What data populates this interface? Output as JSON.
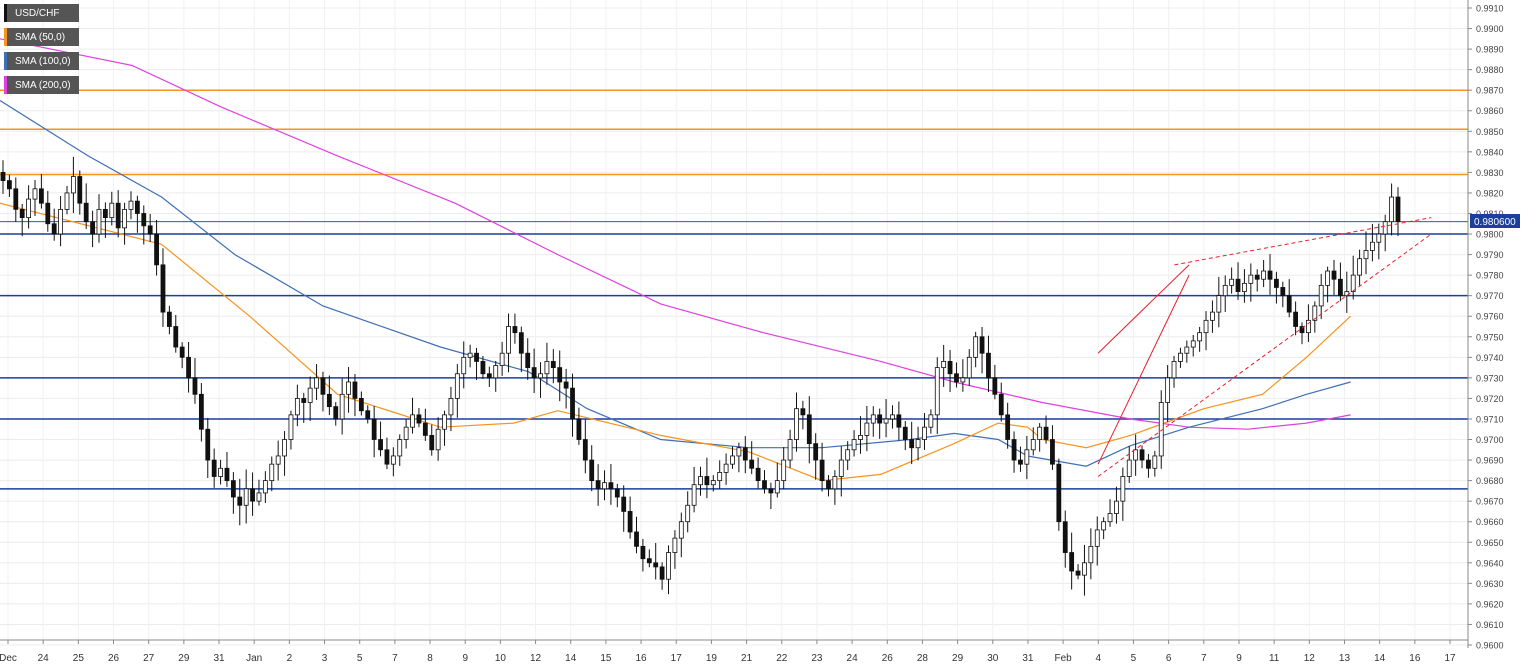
{
  "legend": [
    {
      "label": "USD/CHF",
      "color": "#111111"
    },
    {
      "label": "SMA (50,0)",
      "color": "#f7931e"
    },
    {
      "label": "SMA (100,0)",
      "color": "#3f6fb5"
    },
    {
      "label": "SMA (200,0)",
      "color": "#e040e0"
    }
  ],
  "price_tag": "0.980600",
  "chart_data": {
    "type": "candlestick",
    "symbol": "USD/CHF",
    "ylim": [
      0.96,
      0.9915
    ],
    "y_ticks": [
      "0.9600",
      "0.9610",
      "0.9620",
      "0.9630",
      "0.9640",
      "0.9650",
      "0.9660",
      "0.9670",
      "0.9680",
      "0.9690",
      "0.9700",
      "0.9710",
      "0.9720",
      "0.9730",
      "0.9740",
      "0.9750",
      "0.9760",
      "0.9770",
      "0.9780",
      "0.9790",
      "0.9800",
      "0.9810",
      "0.9820",
      "0.9830",
      "0.9840",
      "0.9850",
      "0.9860",
      "0.9870",
      "0.9880",
      "0.9890",
      "0.9900",
      "0.9910"
    ],
    "x_ticks": [
      "Dec",
      "24",
      "25",
      "26",
      "27",
      "29",
      "31",
      "Jan",
      "2",
      "3",
      "5",
      "7",
      "8",
      "9",
      "10",
      "12",
      "14",
      "15",
      "16",
      "17",
      "19",
      "21",
      "22",
      "23",
      "24",
      "26",
      "28",
      "29",
      "30",
      "31",
      "Feb",
      "4",
      "5",
      "6",
      "7",
      "9",
      "11",
      "12",
      "13",
      "14",
      "16",
      "17"
    ],
    "horizontal_levels": [
      {
        "value": 0.987,
        "color": "#f7931e"
      },
      {
        "value": 0.9851,
        "color": "#f7931e"
      },
      {
        "value": 0.9829,
        "color": "#f7931e"
      },
      {
        "value": 0.98,
        "color": "#1a3f9c"
      },
      {
        "value": 0.977,
        "color": "#1a3f9c"
      },
      {
        "value": 0.973,
        "color": "#1a3f9c"
      },
      {
        "value": 0.971,
        "color": "#1a3f9c"
      },
      {
        "value": 0.9676,
        "color": "#1a3f9c"
      }
    ],
    "current_price": 0.9806,
    "colors": {
      "up": "#ffffff",
      "down": "#111111",
      "sma50": "#f7931e",
      "sma100": "#3f6fb5",
      "sma200": "#e040e0",
      "trend": "#e8202a"
    },
    "price_path": [
      0.9826,
      0.9822,
      0.9812,
      0.9808,
      0.9817,
      0.9822,
      0.9815,
      0.9805,
      0.98,
      0.9812,
      0.982,
      0.9828,
      0.9815,
      0.9806,
      0.98,
      0.9812,
      0.9808,
      0.9815,
      0.9803,
      0.9812,
      0.9816,
      0.981,
      0.9804,
      0.98,
      0.9785,
      0.9762,
      0.9755,
      0.9745,
      0.974,
      0.973,
      0.9722,
      0.9705,
      0.969,
      0.9682,
      0.9686,
      0.968,
      0.9672,
      0.9668,
      0.9676,
      0.967,
      0.9674,
      0.968,
      0.9688,
      0.9692,
      0.97,
      0.9712,
      0.972,
      0.9718,
      0.9725,
      0.973,
      0.9722,
      0.9716,
      0.971,
      0.9722,
      0.9728,
      0.972,
      0.9714,
      0.971,
      0.97,
      0.9695,
      0.9688,
      0.9692,
      0.97,
      0.9706,
      0.9712,
      0.9708,
      0.9702,
      0.9695,
      0.9705,
      0.9712,
      0.972,
      0.9732,
      0.974,
      0.9742,
      0.9738,
      0.9732,
      0.973,
      0.9736,
      0.9742,
      0.9755,
      0.9752,
      0.9742,
      0.9735,
      0.973,
      0.9732,
      0.9738,
      0.9735,
      0.9728,
      0.9725,
      0.971,
      0.97,
      0.969,
      0.968,
      0.9676,
      0.9679,
      0.9676,
      0.9672,
      0.9665,
      0.9655,
      0.9648,
      0.9642,
      0.964,
      0.9638,
      0.9632,
      0.9645,
      0.9652,
      0.966,
      0.9668,
      0.9678,
      0.9682,
      0.9678,
      0.968,
      0.9684,
      0.9688,
      0.9692,
      0.9696,
      0.969,
      0.9686,
      0.968,
      0.9676,
      0.9674,
      0.968,
      0.969,
      0.97,
      0.9715,
      0.9712,
      0.9698,
      0.969,
      0.968,
      0.9676,
      0.9682,
      0.969,
      0.9695,
      0.97,
      0.9702,
      0.9708,
      0.9712,
      0.9708,
      0.971,
      0.9712,
      0.9706,
      0.97,
      0.9696,
      0.97,
      0.9706,
      0.9712,
      0.9735,
      0.9738,
      0.9732,
      0.9728,
      0.973,
      0.974,
      0.975,
      0.9742,
      0.973,
      0.9722,
      0.9712,
      0.97,
      0.969,
      0.9688,
      0.9695,
      0.97,
      0.9706,
      0.97,
      0.9688,
      0.966,
      0.9645,
      0.9636,
      0.9634,
      0.964,
      0.9648,
      0.9656,
      0.966,
      0.9664,
      0.967,
      0.9682,
      0.969,
      0.9695,
      0.969,
      0.9686,
      0.9692,
      0.9718,
      0.973,
      0.9738,
      0.9742,
      0.9745,
      0.9748,
      0.9752,
      0.9758,
      0.9762,
      0.977,
      0.9775,
      0.9778,
      0.9772,
      0.9776,
      0.978,
      0.9778,
      0.9782,
      0.9778,
      0.9774,
      0.977,
      0.9762,
      0.9755,
      0.9752,
      0.9758,
      0.9765,
      0.9775,
      0.9782,
      0.9778,
      0.977,
      0.9772,
      0.978,
      0.9788,
      0.9792,
      0.9796,
      0.98,
      0.9806,
      0.9818,
      0.9806
    ],
    "sma50": [
      [
        0.9815,
        0.0
      ],
      [
        0.9795,
        0.11
      ],
      [
        0.976,
        0.17
      ],
      [
        0.9722,
        0.23
      ],
      [
        0.9706,
        0.3
      ],
      [
        0.9708,
        0.35
      ],
      [
        0.9714,
        0.38
      ],
      [
        0.9702,
        0.45
      ],
      [
        0.9694,
        0.51
      ],
      [
        0.968,
        0.56
      ],
      [
        0.9683,
        0.6
      ],
      [
        0.9698,
        0.65
      ],
      [
        0.9708,
        0.68
      ],
      [
        0.9706,
        0.7
      ],
      [
        0.97,
        0.71
      ],
      [
        0.9696,
        0.74
      ],
      [
        0.9702,
        0.77
      ],
      [
        0.9715,
        0.82
      ],
      [
        0.9722,
        0.86
      ],
      [
        0.974,
        0.89
      ],
      [
        0.976,
        0.92
      ]
    ],
    "sma100": [
      [
        0.9865,
        0.0
      ],
      [
        0.9838,
        0.06
      ],
      [
        0.9818,
        0.11
      ],
      [
        0.979,
        0.16
      ],
      [
        0.9765,
        0.22
      ],
      [
        0.9745,
        0.3
      ],
      [
        0.9733,
        0.36
      ],
      [
        0.9715,
        0.4
      ],
      [
        0.97,
        0.45
      ],
      [
        0.9696,
        0.51
      ],
      [
        0.9696,
        0.56
      ],
      [
        0.97,
        0.62
      ],
      [
        0.9703,
        0.65
      ],
      [
        0.97,
        0.68
      ],
      [
        0.9692,
        0.7
      ],
      [
        0.9687,
        0.74
      ],
      [
        0.9697,
        0.77
      ],
      [
        0.9706,
        0.81
      ],
      [
        0.9715,
        0.86
      ],
      [
        0.9722,
        0.89
      ],
      [
        0.9728,
        0.92
      ]
    ],
    "sma200": [
      [
        0.9895,
        0.0
      ],
      [
        0.9882,
        0.09
      ],
      [
        0.9862,
        0.15
      ],
      [
        0.9838,
        0.23
      ],
      [
        0.9815,
        0.31
      ],
      [
        0.979,
        0.38
      ],
      [
        0.9766,
        0.45
      ],
      [
        0.9752,
        0.52
      ],
      [
        0.9738,
        0.6
      ],
      [
        0.9728,
        0.65
      ],
      [
        0.9718,
        0.71
      ],
      [
        0.971,
        0.77
      ],
      [
        0.9706,
        0.81
      ],
      [
        0.9705,
        0.85
      ],
      [
        0.9708,
        0.89
      ],
      [
        0.9712,
        0.92
      ]
    ],
    "trendlines": [
      {
        "from": [
          0.9688,
          0.748
        ],
        "to": [
          0.978,
          0.81
        ],
        "style": "solid"
      },
      {
        "from": [
          0.9742,
          0.748
        ],
        "to": [
          0.9785,
          0.81
        ],
        "style": "solid"
      },
      {
        "from": [
          0.9682,
          0.748
        ],
        "to": [
          0.98,
          0.975
        ],
        "style": "dashed"
      },
      {
        "from": [
          0.9785,
          0.8
        ],
        "to": [
          0.9808,
          0.975
        ],
        "style": "dashed"
      }
    ]
  }
}
